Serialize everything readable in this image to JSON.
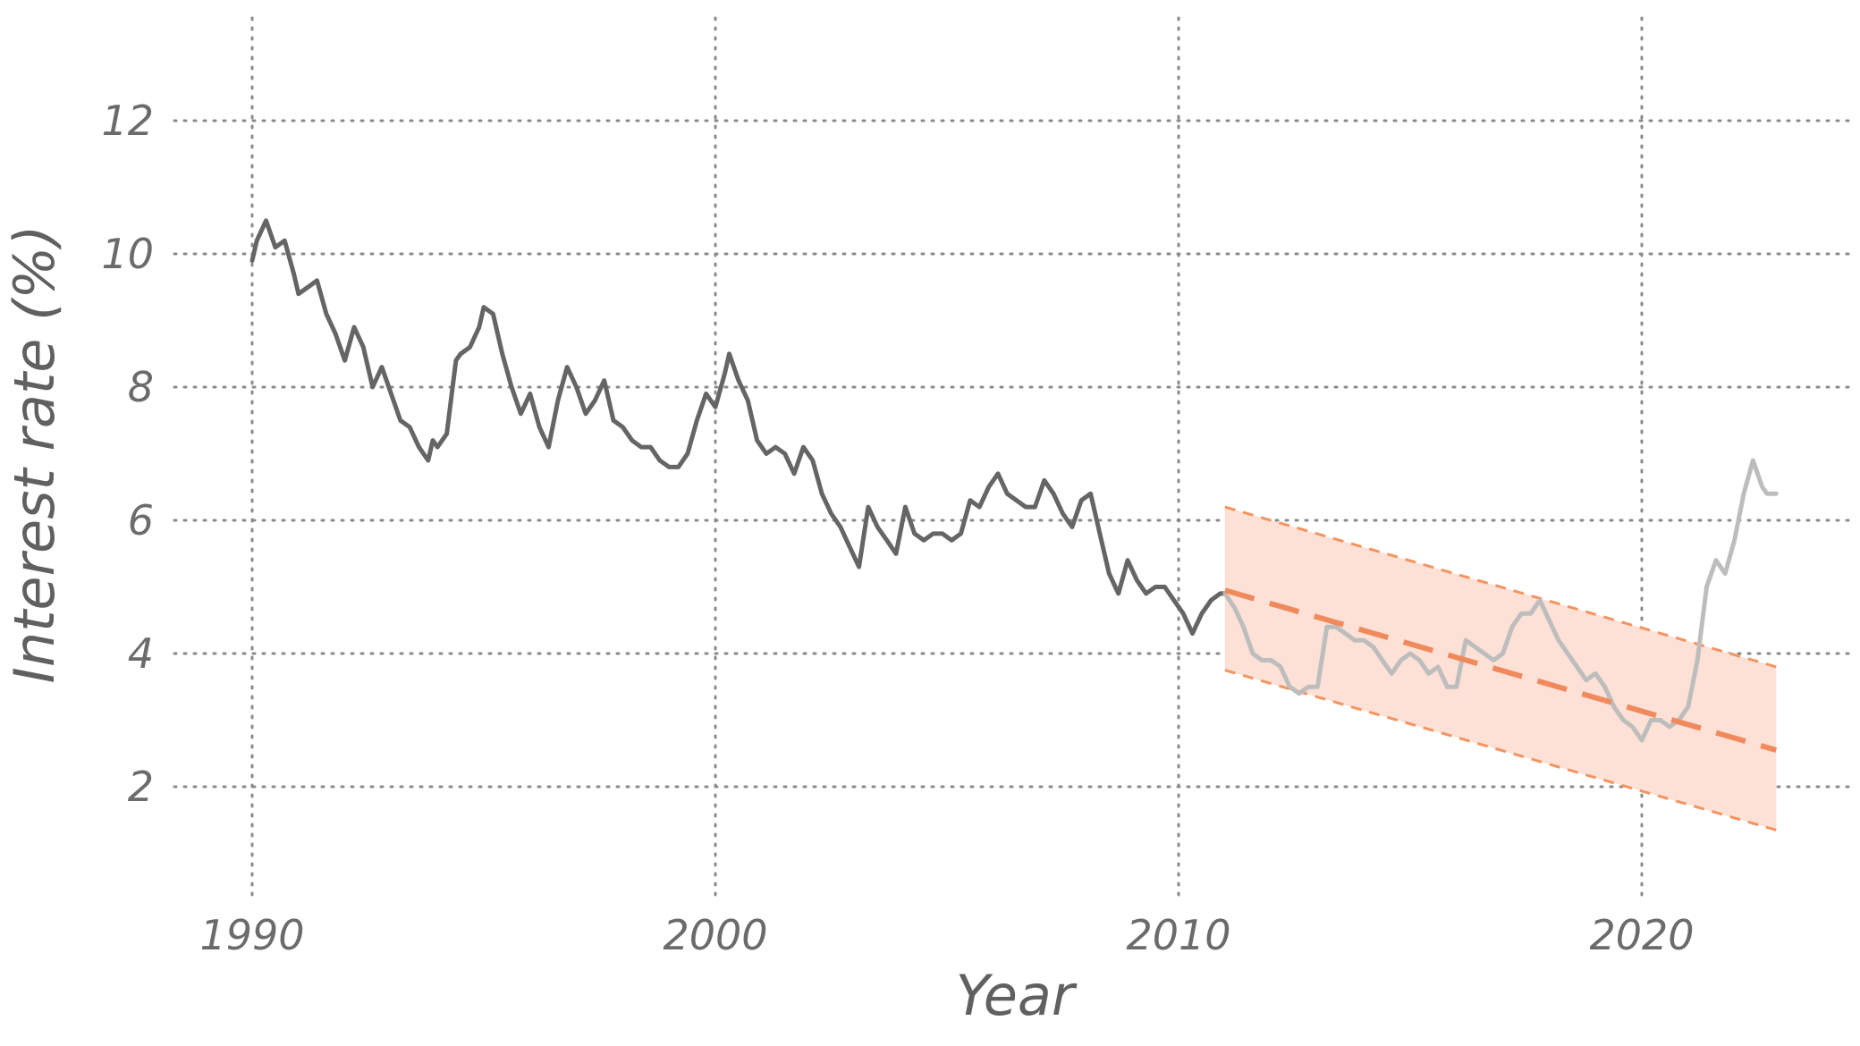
{
  "chart_data": {
    "type": "line",
    "xlabel": "Year",
    "ylabel": "Interest rate (%)",
    "xlim": [
      1990,
      2023
    ],
    "ylim": [
      0.5,
      12.8
    ],
    "x_ticks": [
      1990,
      2000,
      2010,
      2020
    ],
    "y_ticks": [
      2,
      4,
      6,
      8,
      10,
      12
    ],
    "grid": true,
    "colors": {
      "historical": "#656565",
      "recent": "#bdbdbd",
      "trend": "#f08a5d",
      "band_fill": "#fde0d6",
      "band_edge": "#f4945f"
    },
    "series": [
      {
        "role": "historical",
        "x": [
          1990.0,
          1990.1,
          1990.3,
          1990.5,
          1990.7,
          1990.9,
          1991.0,
          1991.2,
          1991.4,
          1991.6,
          1991.8,
          1992.0,
          1992.2,
          1992.4,
          1992.6,
          1992.8,
          1993.0,
          1993.2,
          1993.4,
          1993.6,
          1993.8,
          1993.9,
          1994.0,
          1994.2,
          1994.4,
          1994.5,
          1994.7,
          1994.9,
          1995.0,
          1995.2,
          1995.4,
          1995.6,
          1995.8,
          1996.0,
          1996.2,
          1996.4,
          1996.6,
          1996.8,
          1997.0,
          1997.2,
          1997.4,
          1997.6,
          1997.8,
          1998.0,
          1998.2,
          1998.4,
          1998.6,
          1998.8,
          1999.0,
          1999.2,
          1999.4,
          1999.6,
          1999.8,
          2000.0,
          2000.2,
          2000.3,
          2000.5,
          2000.7,
          2000.9,
          2001.1,
          2001.3,
          2001.5,
          2001.7,
          2001.9,
          2002.1,
          2002.3,
          2002.5,
          2002.7,
          2002.9,
          2003.1,
          2003.3,
          2003.5,
          2003.7,
          2003.9,
          2004.1,
          2004.3,
          2004.5,
          2004.7,
          2004.9,
          2005.1,
          2005.3,
          2005.5,
          2005.7,
          2005.9,
          2006.1,
          2006.3,
          2006.5,
          2006.7,
          2006.9,
          2007.1,
          2007.3,
          2007.5,
          2007.7,
          2007.9,
          2008.1,
          2008.3,
          2008.5,
          2008.7,
          2008.9,
          2009.1,
          2009.3,
          2009.5,
          2009.7,
          2009.9,
          2010.1,
          2010.3,
          2010.5,
          2010.7,
          2010.9,
          2011.0
        ],
        "y": [
          9.9,
          10.2,
          10.5,
          10.1,
          10.2,
          9.7,
          9.4,
          9.5,
          9.6,
          9.1,
          8.8,
          8.4,
          8.9,
          8.6,
          8.0,
          8.3,
          7.9,
          7.5,
          7.4,
          7.1,
          6.9,
          7.2,
          7.1,
          7.3,
          8.4,
          8.5,
          8.6,
          8.9,
          9.2,
          9.1,
          8.5,
          8.0,
          7.6,
          7.9,
          7.4,
          7.1,
          7.8,
          8.3,
          8.0,
          7.6,
          7.8,
          8.1,
          7.5,
          7.4,
          7.2,
          7.1,
          7.1,
          6.9,
          6.8,
          6.8,
          7.0,
          7.5,
          7.9,
          7.7,
          8.2,
          8.5,
          8.1,
          7.8,
          7.2,
          7.0,
          7.1,
          7.0,
          6.7,
          7.1,
          6.9,
          6.4,
          6.1,
          5.9,
          5.6,
          5.3,
          6.2,
          5.9,
          5.7,
          5.5,
          6.2,
          5.8,
          5.7,
          5.8,
          5.8,
          5.7,
          5.8,
          6.3,
          6.2,
          6.5,
          6.7,
          6.4,
          6.3,
          6.2,
          6.2,
          6.6,
          6.4,
          6.1,
          5.9,
          6.3,
          6.4,
          5.8,
          5.2,
          4.9,
          5.4,
          5.1,
          4.9,
          5.0,
          5.0,
          4.8,
          4.6,
          4.3,
          4.6,
          4.8,
          4.9,
          4.9
        ]
      },
      {
        "role": "recent",
        "x": [
          2011.0,
          2011.2,
          2011.4,
          2011.6,
          2011.8,
          2012.0,
          2012.2,
          2012.4,
          2012.6,
          2012.8,
          2013.0,
          2013.2,
          2013.4,
          2013.6,
          2013.8,
          2014.0,
          2014.2,
          2014.4,
          2014.6,
          2014.8,
          2015.0,
          2015.2,
          2015.4,
          2015.6,
          2015.8,
          2016.0,
          2016.2,
          2016.4,
          2016.6,
          2016.8,
          2017.0,
          2017.2,
          2017.4,
          2017.6,
          2017.8,
          2018.0,
          2018.2,
          2018.4,
          2018.6,
          2018.8,
          2019.0,
          2019.2,
          2019.4,
          2019.6,
          2019.8,
          2020.0,
          2020.2,
          2020.4,
          2020.6,
          2020.8,
          2021.0,
          2021.2,
          2021.4,
          2021.6,
          2021.8,
          2022.0,
          2022.2,
          2022.4,
          2022.6,
          2022.7,
          2022.8,
          2022.9
        ],
        "y": [
          4.9,
          4.7,
          4.4,
          4.0,
          3.9,
          3.9,
          3.8,
          3.5,
          3.4,
          3.5,
          3.5,
          4.4,
          4.4,
          4.3,
          4.2,
          4.2,
          4.1,
          3.9,
          3.7,
          3.9,
          4.0,
          3.9,
          3.7,
          3.8,
          3.5,
          3.5,
          4.2,
          4.1,
          4.0,
          3.9,
          4.0,
          4.4,
          4.6,
          4.6,
          4.8,
          4.5,
          4.2,
          4.0,
          3.8,
          3.6,
          3.7,
          3.5,
          3.2,
          3.0,
          2.9,
          2.7,
          3.0,
          3.0,
          2.9,
          3.0,
          3.2,
          3.9,
          5.0,
          5.4,
          5.2,
          5.7,
          6.4,
          6.9,
          6.5,
          6.4,
          6.4,
          6.4
        ]
      }
    ],
    "trend": {
      "x": [
        2011.0,
        2022.9
      ],
      "y": [
        4.95,
        2.55
      ]
    },
    "band": {
      "x": [
        2011.0,
        2022.9
      ],
      "upper": [
        6.2,
        3.8
      ],
      "lower": [
        3.75,
        1.35
      ]
    }
  }
}
